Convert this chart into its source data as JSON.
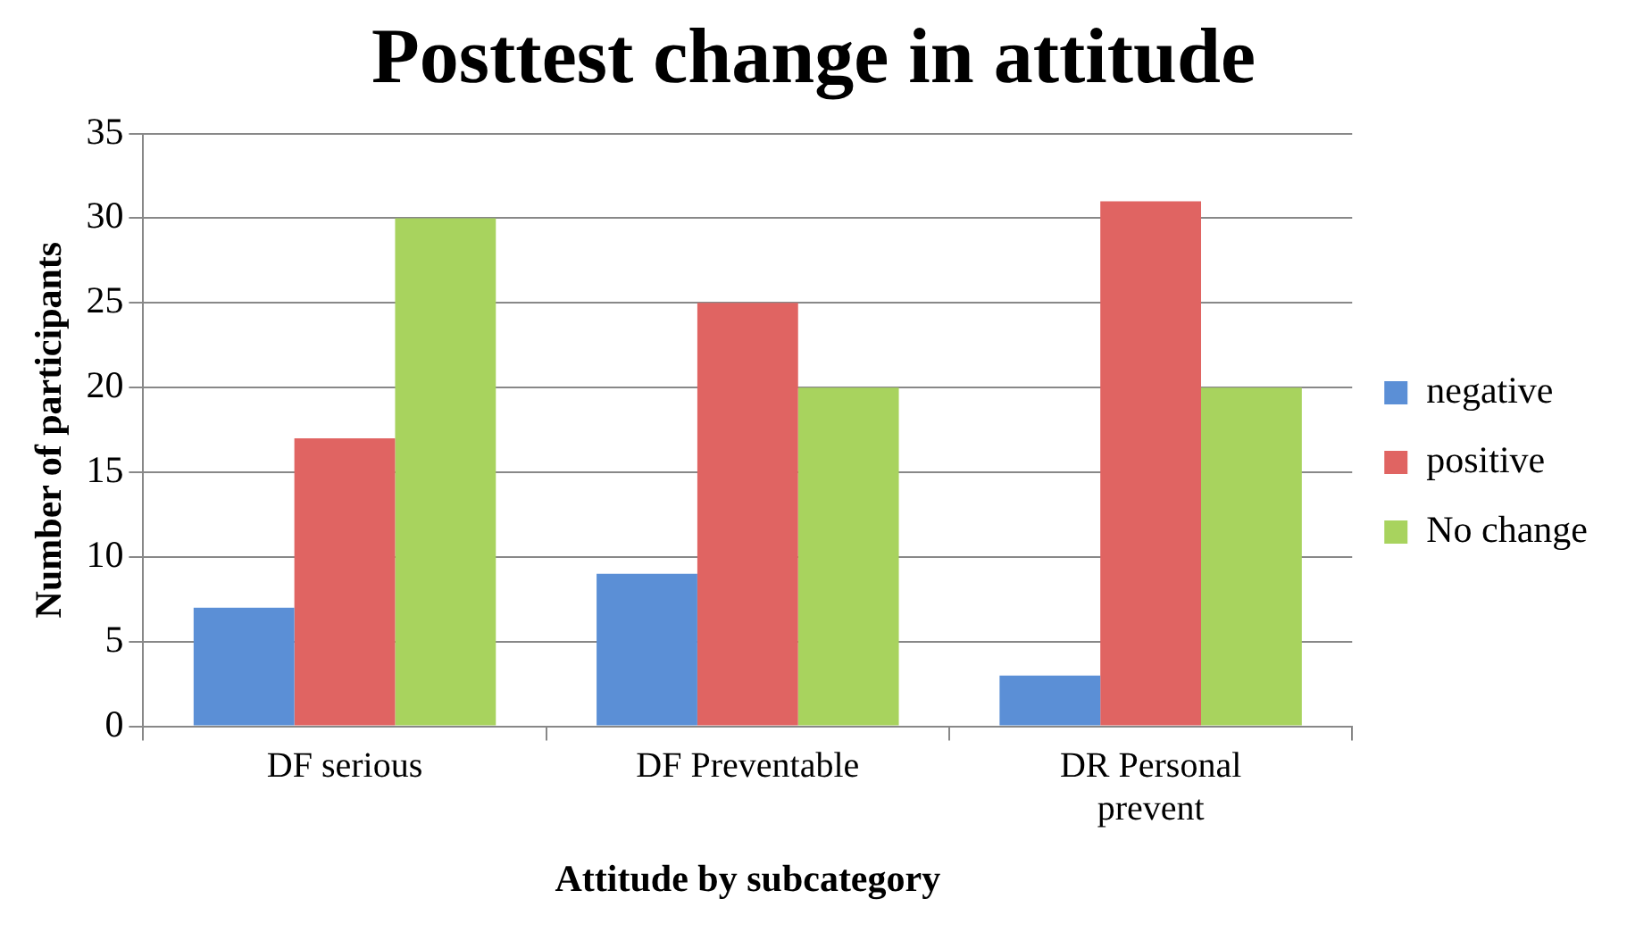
{
  "chart_data": {
    "type": "bar",
    "title": "Posttest change in attitude",
    "xlabel": "Attitude by subcategory",
    "ylabel": "Number of participants",
    "categories": [
      "DF serious",
      "DF Preventable",
      "DR Personal prevent"
    ],
    "series": [
      {
        "name": "negative",
        "color": "#5b8fd6",
        "values": [
          7,
          9,
          3
        ]
      },
      {
        "name": "positive",
        "color": "#e06462",
        "values": [
          17,
          25,
          31
        ]
      },
      {
        "name": "No change",
        "color": "#a8d35e",
        "values": [
          30,
          20,
          20
        ]
      }
    ],
    "ylim": [
      0,
      35
    ],
    "yticks": [
      0,
      5,
      10,
      15,
      20,
      25,
      30,
      35
    ],
    "grid": "y",
    "legend": "right"
  }
}
